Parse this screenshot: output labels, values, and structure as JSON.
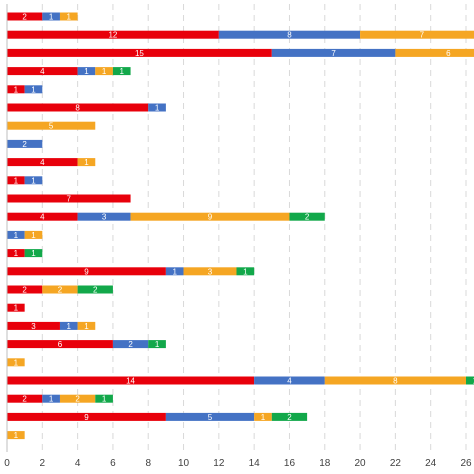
{
  "chart_data": {
    "type": "bar",
    "orientation": "horizontal",
    "stacked": true,
    "xlim": [
      0,
      26
    ],
    "x_ticks": [
      "0",
      "2",
      "4",
      "6",
      "8",
      "10",
      "12",
      "14",
      "16",
      "18",
      "20",
      "22",
      "24",
      "26"
    ],
    "grid": true,
    "legend": "none",
    "colors": [
      "#e8000b",
      "#4472c4",
      "#f5a623",
      "#12a84a"
    ],
    "rows": [
      [
        2,
        1,
        1,
        0
      ],
      [
        12,
        8,
        7,
        0
      ],
      [
        15,
        7,
        6,
        0
      ],
      [
        4,
        1,
        1,
        1
      ],
      [
        1,
        1,
        0,
        0
      ],
      [
        8,
        1,
        0,
        0
      ],
      [
        0,
        0,
        5,
        0
      ],
      [
        0,
        2,
        0,
        0
      ],
      [
        4,
        0,
        1,
        0
      ],
      [
        1,
        1,
        0,
        0
      ],
      [
        7,
        0,
        0,
        0
      ],
      [
        4,
        3,
        9,
        2
      ],
      [
        0,
        1,
        1,
        0
      ],
      [
        1,
        0,
        0,
        1
      ],
      [
        9,
        1,
        3,
        1
      ],
      [
        2,
        0,
        2,
        2
      ],
      [
        1,
        0,
        0,
        0
      ],
      [
        3,
        1,
        1,
        0
      ],
      [
        6,
        2,
        0,
        1
      ],
      [
        0,
        0,
        1,
        0
      ],
      [
        14,
        4,
        8,
        1
      ],
      [
        2,
        1,
        2,
        1
      ],
      [
        9,
        5,
        1,
        2
      ],
      [
        0,
        0,
        1,
        0
      ]
    ]
  }
}
